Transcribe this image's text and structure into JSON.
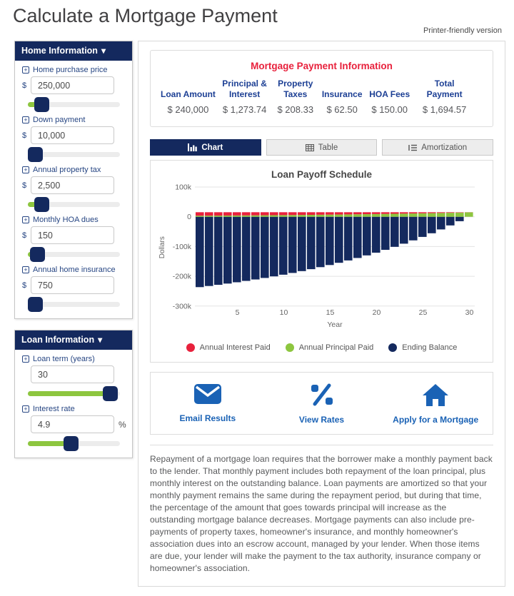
{
  "page": {
    "title": "Calculate a Mortgage Payment",
    "printer_link": "Printer-friendly version"
  },
  "colors": {
    "navy": "#14295e",
    "green": "#8dc63f",
    "red": "#e8213c",
    "blue": "#1a62b5"
  },
  "sidebar": {
    "home_panel": {
      "title": "Home Information",
      "fields": [
        {
          "label": "Home purchase price",
          "prefix": "$",
          "value": "250,000",
          "slider_pos": 0.08
        },
        {
          "label": "Down payment",
          "prefix": "$",
          "value": "10,000",
          "slider_pos": 0.0
        },
        {
          "label": "Annual property tax",
          "prefix": "$",
          "value": "2,500",
          "slider_pos": 0.08
        },
        {
          "label": "Monthly HOA dues",
          "prefix": "$",
          "value": "150",
          "slider_pos": 0.03
        },
        {
          "label": "Annual home insurance",
          "prefix": "$",
          "value": "750",
          "slider_pos": 0.0
        }
      ]
    },
    "loan_panel": {
      "title": "Loan Information",
      "fields": [
        {
          "label": "Loan term (years)",
          "prefix": "",
          "value": "30",
          "slider_pos": 0.97
        },
        {
          "label": "Interest rate",
          "prefix": "",
          "value": "4.9",
          "suffix": "%",
          "slider_pos": 0.465
        }
      ]
    }
  },
  "summary": {
    "title": "Mortgage Payment Information",
    "columns": [
      {
        "header": "Loan Amount",
        "value": "$ 240,000"
      },
      {
        "header": "Principal & Interest",
        "value": "$ 1,273.74"
      },
      {
        "header": "Property Taxes",
        "value": "$ 208.33"
      },
      {
        "header": "Insurance",
        "value": "$ 62.50"
      },
      {
        "header": "HOA Fees",
        "value": "$ 150.00"
      },
      {
        "header": "Total Payment",
        "value": "$ 1,694.57"
      }
    ]
  },
  "tabs": [
    {
      "label": "Chart",
      "icon": "bar-chart-icon",
      "active": true
    },
    {
      "label": "Table",
      "icon": "table-icon",
      "active": false
    },
    {
      "label": "Amortization",
      "icon": "list-icon",
      "active": false
    }
  ],
  "chart_data": {
    "type": "bar",
    "title": "Loan Payoff Schedule",
    "xlabel": "Year",
    "ylabel": "Dollars",
    "ylim": [
      -300000,
      100000
    ],
    "yticks": [
      100000,
      0,
      -100000,
      -200000,
      -300000
    ],
    "ytick_labels": [
      "100k",
      "0",
      "-100k",
      "-200k",
      "-300k"
    ],
    "xticks": [
      5,
      10,
      15,
      20,
      25,
      30
    ],
    "x": [
      1,
      2,
      3,
      4,
      5,
      6,
      7,
      8,
      9,
      10,
      11,
      12,
      13,
      14,
      15,
      16,
      17,
      18,
      19,
      20,
      21,
      22,
      23,
      24,
      25,
      26,
      27,
      28,
      29,
      30
    ],
    "series": [
      {
        "name": "Annual Interest Paid",
        "color": "#e8213c",
        "values": [
          11679,
          11499,
          11309,
          11110,
          10901,
          10681,
          10450,
          10208,
          9954,
          9686,
          9406,
          9111,
          8802,
          8477,
          8136,
          7777,
          7401,
          7006,
          6591,
          6155,
          5698,
          5217,
          4713,
          4183,
          3627,
          3042,
          2429,
          1784,
          1108,
          407
        ]
      },
      {
        "name": "Annual Principal Paid",
        "color": "#8dc63f",
        "values": [
          3606,
          3786,
          3976,
          4175,
          4384,
          4604,
          4835,
          5077,
          5331,
          5599,
          5879,
          6174,
          6483,
          6808,
          7149,
          7508,
          7884,
          8279,
          8694,
          9130,
          9587,
          10068,
          10572,
          11102,
          11658,
          12243,
          12856,
          13501,
          14177,
          14878
        ]
      },
      {
        "name": "Ending Balance",
        "color": "#14295e",
        "values": [
          -236394,
          -232608,
          -228633,
          -224458,
          -220074,
          -215470,
          -210636,
          -205559,
          -200227,
          -194629,
          -188750,
          -182576,
          -176093,
          -169284,
          -162135,
          -154628,
          -146744,
          -138465,
          -129771,
          -120642,
          -111055,
          -100987,
          -90415,
          -79313,
          -67655,
          -55412,
          -42556,
          -29055,
          -14878,
          0
        ]
      }
    ],
    "legend_position": "bottom"
  },
  "actions": [
    {
      "label": "Email Results",
      "icon": "envelope-icon"
    },
    {
      "label": "View Rates",
      "icon": "percent-icon"
    },
    {
      "label": "Apply for a Mortgage",
      "icon": "home-icon"
    }
  ],
  "description": "Repayment of a mortgage loan requires that the borrower make a monthly payment back to the lender. That monthly payment includes both repayment of the loan principal, plus monthly interest on the outstanding balance. Loan payments are amortized so that your monthly payment remains the same during the repayment period, but during that time, the percentage of the amount that goes towards principal will increase as the outstanding mortgage balance decreases. Mortgage payments can also include pre-payments of property taxes, homeowner's insurance, and monthly homeowner's association dues into an escrow account, managed by your lender. When those items are due, your lender will make the payment to the tax authority, insurance company or homeowner's association."
}
